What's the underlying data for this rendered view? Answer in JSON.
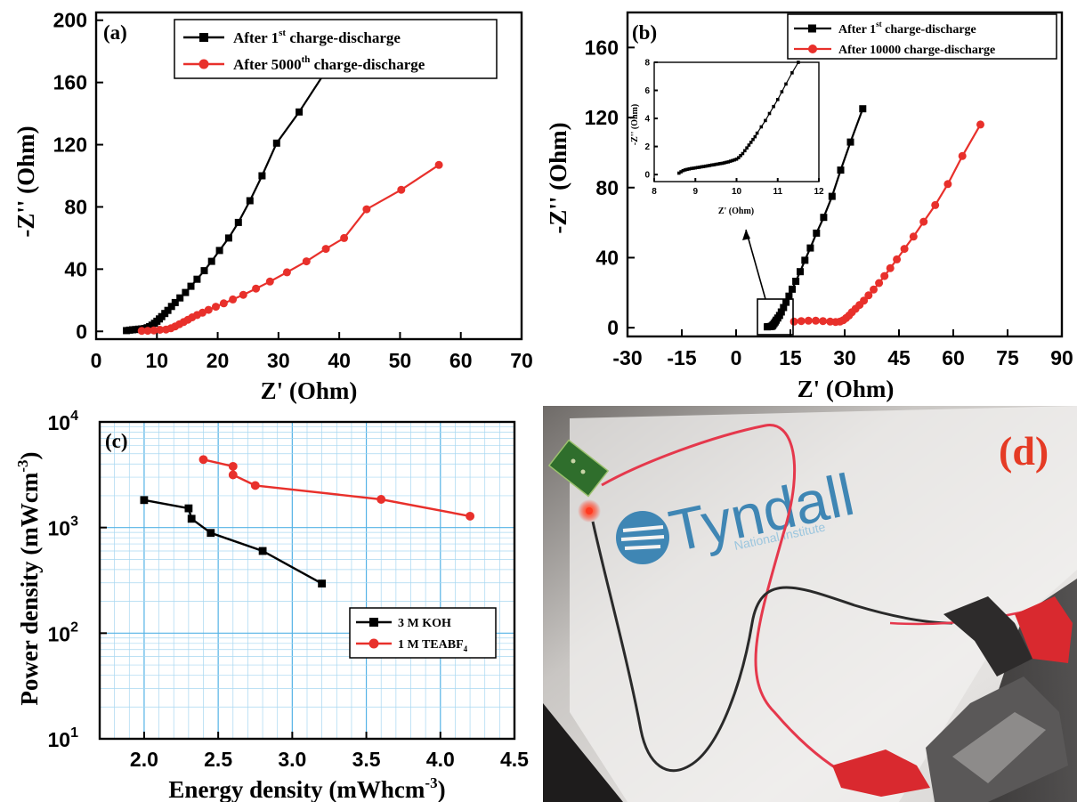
{
  "chart_data": [
    {
      "id": "a",
      "type": "line",
      "panel_label": "(a)",
      "xlabel": "Z' (Ohm)",
      "ylabel": "-Z'' (Ohm)",
      "xlim": [
        0,
        70
      ],
      "ylim": [
        -5,
        205
      ],
      "xticks": [
        "0",
        "10",
        "20",
        "30",
        "40",
        "50",
        "60",
        "70"
      ],
      "yticks": [
        "0",
        "40",
        "80",
        "120",
        "160",
        "200"
      ],
      "legend_position": "top-right",
      "series": [
        {
          "name": "After 1st charge-discharge",
          "color": "#000000",
          "marker": "square",
          "x": [
            5.0,
            5.5,
            6.0,
            6.5,
            7.0,
            7.5,
            8.0,
            8.4,
            8.8,
            9.2,
            9.6,
            10.0,
            10.4,
            10.8,
            11.3,
            11.8,
            12.4,
            13.0,
            13.8,
            14.7,
            15.6,
            16.6,
            17.8,
            19.0,
            20.3,
            21.8,
            23.4,
            25.3,
            27.3,
            29.7,
            33.4,
            37.4
          ],
          "y": [
            0.5,
            0.8,
            1.0,
            1.2,
            1.4,
            1.6,
            1.8,
            2.3,
            3.0,
            4.0,
            5.2,
            6.5,
            8.0,
            9.5,
            11.5,
            13.5,
            16.0,
            18.5,
            21.5,
            25.0,
            29.0,
            33.5,
            39.0,
            45.0,
            52.0,
            60.0,
            70.0,
            84.0,
            100.0,
            121.0,
            141.0,
            165.0
          ]
        },
        {
          "name": "After 5000th charge-discharge",
          "color": "#e8302b",
          "marker": "circle",
          "x": [
            7.5,
            8.5,
            9.5,
            10.5,
            11.5,
            12.3,
            13.0,
            13.7,
            14.4,
            15.1,
            15.8,
            16.6,
            17.5,
            18.5,
            19.7,
            21.0,
            22.5,
            24.2,
            26.3,
            28.6,
            31.4,
            34.6,
            37.8,
            40.8,
            44.5,
            50.2,
            56.4
          ],
          "y": [
            0.3,
            0.4,
            0.6,
            1.0,
            1.2,
            2.0,
            3.2,
            4.6,
            6.0,
            7.5,
            9.0,
            10.5,
            12.0,
            13.8,
            15.8,
            18.0,
            20.5,
            23.5,
            27.5,
            32.0,
            38.0,
            45.0,
            53.0,
            60.0,
            78.5,
            91.0,
            107.0
          ]
        }
      ]
    },
    {
      "id": "b",
      "type": "line",
      "panel_label": "(b)",
      "xlabel": "Z' (Ohm)",
      "ylabel": "-Z'' (Ohm)",
      "xlim": [
        -30,
        90
      ],
      "ylim": [
        -5,
        180
      ],
      "xticks": [
        "-30",
        "-15",
        "0",
        "15",
        "30",
        "45",
        "60",
        "75",
        "90"
      ],
      "yticks": [
        "0",
        "40",
        "80",
        "120",
        "160"
      ],
      "legend_position": "top-right",
      "series": [
        {
          "name": "After 1st charge-discharge",
          "color": "#000000",
          "marker": "square",
          "x": [
            8.6,
            8.9,
            9.2,
            9.5,
            9.8,
            10.0,
            10.2,
            10.5,
            10.8,
            11.1,
            11.5,
            12.0,
            12.5,
            13.1,
            13.8,
            14.6,
            15.5,
            16.5,
            17.7,
            19.0,
            20.5,
            22.2,
            24.2,
            26.5,
            28.9,
            31.6,
            35.0
          ],
          "y": [
            0.5,
            0.6,
            0.6,
            0.7,
            0.8,
            1.0,
            1.6,
            2.4,
            3.3,
            4.3,
            5.5,
            7.0,
            9.0,
            11.5,
            14.5,
            18.0,
            22.0,
            26.5,
            32.0,
            38.5,
            45.5,
            54.0,
            63.0,
            75.0,
            90.0,
            106.0,
            125.0
          ]
        },
        {
          "name": "After 10000 charge-discharge",
          "color": "#e8302b",
          "marker": "circle",
          "x": [
            16.0,
            18.0,
            20.0,
            22.0,
            24.0,
            26.0,
            27.5,
            28.7,
            29.6,
            30.4,
            31.2,
            32.0,
            33.0,
            34.1,
            35.3,
            36.6,
            38.0,
            39.5,
            41.0,
            42.6,
            44.4,
            46.5,
            49.0,
            51.8,
            55.0,
            58.5,
            62.5,
            67.5
          ],
          "y": [
            3.5,
            3.8,
            4.0,
            4.0,
            3.8,
            3.5,
            3.3,
            3.5,
            4.3,
            5.5,
            7.0,
            8.8,
            10.8,
            13.0,
            15.5,
            18.5,
            21.8,
            25.5,
            29.5,
            34.0,
            39.0,
            45.0,
            52.0,
            60.5,
            70.0,
            82.0,
            98.0,
            116.0
          ]
        }
      ],
      "inset": {
        "xlabel": "Z' (Ohm)",
        "ylabel": "-Z'' (Ohm)",
        "xlim": [
          8,
          12
        ],
        "ylim": [
          -0.5,
          8
        ],
        "xticks": [
          "8",
          "9",
          "10",
          "11",
          "12"
        ],
        "yticks": [
          "0",
          "2",
          "4",
          "6",
          "8"
        ],
        "x": [
          8.6,
          8.65,
          8.7,
          8.75,
          8.8,
          8.85,
          8.9,
          8.95,
          9.0,
          9.05,
          9.1,
          9.15,
          9.2,
          9.25,
          9.3,
          9.35,
          9.4,
          9.45,
          9.5,
          9.55,
          9.6,
          9.65,
          9.7,
          9.75,
          9.8,
          9.85,
          9.9,
          9.95,
          10.0,
          10.05,
          10.1,
          10.15,
          10.2,
          10.25,
          10.3,
          10.35,
          10.4,
          10.45,
          10.5,
          10.6,
          10.7,
          10.8,
          10.9,
          11.0,
          11.1,
          11.2,
          11.35,
          11.5
        ],
        "y": [
          0.1,
          0.2,
          0.28,
          0.33,
          0.37,
          0.4,
          0.43,
          0.45,
          0.48,
          0.5,
          0.52,
          0.55,
          0.57,
          0.6,
          0.62,
          0.65,
          0.68,
          0.7,
          0.73,
          0.75,
          0.78,
          0.8,
          0.83,
          0.87,
          0.9,
          0.95,
          1.0,
          1.05,
          1.1,
          1.2,
          1.35,
          1.5,
          1.7,
          1.9,
          2.1,
          2.3,
          2.5,
          2.7,
          2.95,
          3.4,
          3.85,
          4.35,
          4.85,
          5.35,
          5.9,
          6.45,
          7.25,
          8.0
        ]
      }
    },
    {
      "id": "c",
      "type": "line",
      "panel_label": "(c)",
      "xlabel": "Energy density (mWhcm-3)",
      "ylabel": "Power density (mWcm-3)",
      "xlim": [
        1.7,
        4.5
      ],
      "ylim": [
        10,
        10000
      ],
      "yscale": "log",
      "grid": true,
      "xticks": [
        "2.0",
        "2.5",
        "3.0",
        "3.5",
        "4.0",
        "4.5"
      ],
      "ytick_bases": [
        "10",
        "10",
        "10",
        "10"
      ],
      "ytick_exps": [
        "1",
        "2",
        "3",
        "4"
      ],
      "legend_position": "bottom-right",
      "series": [
        {
          "name": "3 M KOH",
          "color": "#000000",
          "marker": "square",
          "x": [
            2.0,
            2.3,
            2.32,
            2.45,
            2.8,
            3.2
          ],
          "y": [
            1820,
            1520,
            1210,
            890,
            600,
            295
          ]
        },
        {
          "name": "1 M TEABF4",
          "color": "#e8302b",
          "marker": "circle",
          "x": [
            2.4,
            2.6,
            2.6,
            2.75,
            3.6,
            4.2
          ],
          "y": [
            4400,
            3800,
            3150,
            2500,
            1850,
            1280
          ]
        }
      ]
    }
  ],
  "axis_titles": {
    "a_x": "Z' (Ohm)",
    "a_y": "-Z'' (Ohm)",
    "b_x": "Z' (Ohm)",
    "b_y": "-Z'' (Ohm)",
    "b_inset_x": "Z' (Ohm)",
    "b_inset_y": "-Z'' (Ohm)",
    "c_x_main": "Energy density (mWhcm",
    "c_x_sup": "-3",
    "c_x_end": ")",
    "c_y_main": "Power density (mWcm",
    "c_y_sup": "-3",
    "c_y_end": ")"
  },
  "legends": {
    "a1_main": "After 1",
    "a1_sup": "st",
    "a1_rest": " charge-discharge",
    "a2_main": "After 5000",
    "a2_sup": "th",
    "a2_rest": " charge-discharge",
    "b1_main": "After 1",
    "b1_sup": "st",
    "b1_rest": " charge-discharge",
    "b2_main": "After 10000 charge-discharge",
    "c1_main": "3 M KOH",
    "c2_main": "1 M TEABF",
    "c2_sub": "4"
  },
  "panel_labels": {
    "a": "(a)",
    "b": "(b)",
    "c": "(c)",
    "d": "(d)"
  },
  "photo": {
    "logo_text": "Tyndall",
    "logo_subtext": "National Institute",
    "led_color": "#ff2a1a",
    "wire_red": "#e5384c",
    "wire_black": "#2a2a2a",
    "clip_red": "#d9292f"
  }
}
